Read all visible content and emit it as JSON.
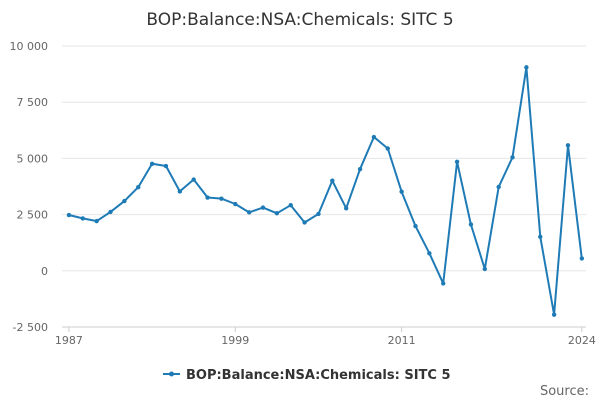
{
  "chart_data": {
    "type": "line",
    "title": "BOP:Balance:NSA:Chemicals: SITC 5",
    "xlabel": "",
    "ylabel": "",
    "x_ticks": [
      "1987",
      "1999",
      "2011",
      "2024"
    ],
    "y_ticks": [
      "10 000",
      "7 500",
      "5 000",
      "2 500",
      "0",
      "-2 500"
    ],
    "ylim": [
      -2500,
      10000
    ],
    "xlim": [
      1986.5,
      2024.3
    ],
    "grid": true,
    "legend_position": "bottom",
    "source_label": "Source:",
    "series": [
      {
        "name": "BOP:Balance:NSA:Chemicals: SITC 5",
        "color": "#1f7bb6",
        "x": [
          1987,
          1988,
          1989,
          1990,
          1991,
          1992,
          1993,
          1994,
          1995,
          1996,
          1997,
          1998,
          1999,
          2000,
          2001,
          2002,
          2003,
          2004,
          2005,
          2006,
          2007,
          2008,
          2009,
          2010,
          2011,
          2012,
          2013,
          2014,
          2015,
          2016,
          2017,
          2018,
          2019,
          2020,
          2021,
          2022,
          2023,
          2024
        ],
        "values": [
          2480,
          2330,
          2210,
          2620,
          3100,
          3720,
          4760,
          4660,
          3530,
          4060,
          3260,
          3210,
          2970,
          2600,
          2810,
          2560,
          2920,
          2150,
          2530,
          4010,
          2780,
          4520,
          5950,
          5440,
          3520,
          1990,
          780,
          -560,
          4850,
          2060,
          80,
          3730,
          5050,
          9050,
          1510,
          -1950,
          5580,
          550
        ]
      }
    ]
  }
}
